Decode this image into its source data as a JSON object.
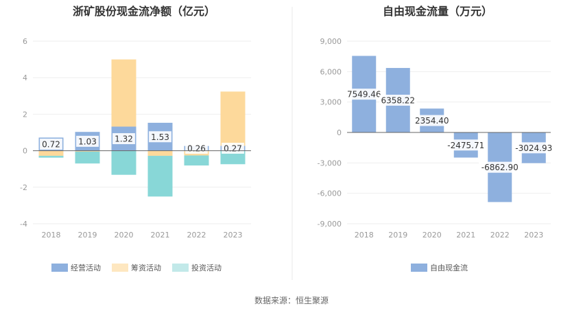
{
  "source": "数据来源：恒生聚源",
  "chart_data": [
    {
      "type": "bar",
      "stacked": true,
      "title": "浙矿股份现金流净额（亿元）",
      "categories": [
        "2018",
        "2019",
        "2020",
        "2021",
        "2022",
        "2023"
      ],
      "ylim": [
        -4,
        6
      ],
      "yticks": [
        "-4",
        "-2",
        "0",
        "2",
        "4",
        "6"
      ],
      "grid": true,
      "legend_position": "bottom",
      "series": [
        {
          "name": "经营活动",
          "color": "#8eb0de",
          "values": [
            0.72,
            1.03,
            1.32,
            1.53,
            0.26,
            0.27
          ],
          "labels": [
            "0.72",
            "1.03",
            "1.32",
            "1.53",
            "0.26",
            "0.27"
          ]
        },
        {
          "name": "筹资活动",
          "color": "#fdd99b",
          "values": [
            -0.28,
            -0.05,
            3.68,
            -0.28,
            -0.26,
            2.97
          ]
        },
        {
          "name": "投资活动",
          "color": "#88d7d7",
          "values": [
            -0.1,
            -0.65,
            -1.32,
            -2.23,
            -0.55,
            -0.74
          ]
        }
      ]
    },
    {
      "type": "bar",
      "title": "自由现金流量（万元）",
      "categories": [
        "2018",
        "2019",
        "2020",
        "2021",
        "2022",
        "2023"
      ],
      "ylim": [
        -9000,
        9000
      ],
      "yticks": [
        "-9,000",
        "-6,000",
        "-3,000",
        "0",
        "3,000",
        "6,000",
        "9,000"
      ],
      "grid": true,
      "legend_position": "bottom",
      "series": [
        {
          "name": "自由现金流",
          "color": "#8eb0de",
          "values": [
            7549.46,
            6358.22,
            2354.4,
            -2475.71,
            -6862.9,
            -3024.93
          ],
          "labels": [
            "7549.46",
            "6358.22",
            "2354.40",
            "-2475.71",
            "-6862.90",
            "-3024.93"
          ]
        }
      ]
    }
  ]
}
